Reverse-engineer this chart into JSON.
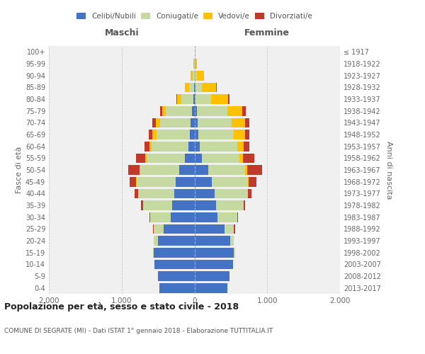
{
  "age_groups": [
    "0-4",
    "5-9",
    "10-14",
    "15-19",
    "20-24",
    "25-29",
    "30-34",
    "35-39",
    "40-44",
    "45-49",
    "50-54",
    "55-59",
    "60-64",
    "65-69",
    "70-74",
    "75-79",
    "80-84",
    "85-89",
    "90-94",
    "95-99",
    "100+"
  ],
  "birth_years": [
    "2013-2017",
    "2008-2012",
    "2003-2007",
    "1998-2002",
    "1993-1997",
    "1988-1992",
    "1983-1987",
    "1978-1982",
    "1973-1977",
    "1968-1972",
    "1963-1967",
    "1958-1962",
    "1953-1957",
    "1948-1952",
    "1943-1947",
    "1938-1942",
    "1933-1937",
    "1928-1932",
    "1923-1927",
    "1918-1922",
    "≤ 1917"
  ],
  "maschi_celibi": [
    480,
    500,
    550,
    555,
    505,
    425,
    325,
    305,
    275,
    260,
    205,
    135,
    80,
    60,
    50,
    35,
    10,
    5,
    0,
    0,
    0
  ],
  "maschi_coniugati": [
    0,
    0,
    0,
    10,
    50,
    130,
    280,
    405,
    495,
    535,
    535,
    525,
    505,
    465,
    425,
    355,
    170,
    70,
    20,
    5,
    0
  ],
  "maschi_vedovi": [
    0,
    0,
    0,
    0,
    0,
    0,
    0,
    0,
    5,
    5,
    10,
    20,
    30,
    50,
    55,
    55,
    60,
    55,
    30,
    5,
    0
  ],
  "maschi_divorziati": [
    0,
    0,
    0,
    0,
    0,
    10,
    10,
    20,
    50,
    90,
    160,
    120,
    70,
    50,
    50,
    30,
    10,
    0,
    0,
    0,
    0
  ],
  "femmine_celibi": [
    450,
    480,
    535,
    545,
    495,
    415,
    315,
    295,
    275,
    235,
    185,
    100,
    70,
    50,
    40,
    30,
    15,
    10,
    5,
    0,
    0
  ],
  "femmine_coniugati": [
    0,
    0,
    0,
    10,
    50,
    130,
    275,
    380,
    455,
    495,
    515,
    515,
    515,
    495,
    475,
    425,
    215,
    90,
    30,
    5,
    0
  ],
  "femmine_vedovi": [
    0,
    0,
    0,
    0,
    0,
    0,
    0,
    0,
    5,
    15,
    25,
    50,
    90,
    150,
    180,
    200,
    235,
    200,
    100,
    30,
    5
  ],
  "femmine_divorziati": [
    0,
    0,
    0,
    0,
    0,
    10,
    10,
    20,
    50,
    105,
    205,
    155,
    80,
    60,
    60,
    50,
    20,
    5,
    0,
    0,
    0
  ],
  "colors": {
    "celibi": "#4472c4",
    "coniugati": "#c5d9a0",
    "vedovi": "#ffc000",
    "divorziati": "#c0392b"
  },
  "legend_labels": [
    "Celibi/Nubili",
    "Coniugati/e",
    "Vedovi/e",
    "Divorziati/e"
  ],
  "title": "Popolazione per età, sesso e stato civile - 2018",
  "subtitle": "COMUNE DI SEGRATE (MI) - Dati ISTAT 1° gennaio 2018 - Elaborazione TUTTITALIA.IT",
  "ylabel_left": "Fasce di età",
  "ylabel_right": "Anni di nascita",
  "header_left": "Maschi",
  "header_right": "Femmine",
  "xlim": 2000,
  "bg_fig": "#ffffff",
  "bg_chart": "#f0f0f0",
  "grid_color": "#cccccc"
}
